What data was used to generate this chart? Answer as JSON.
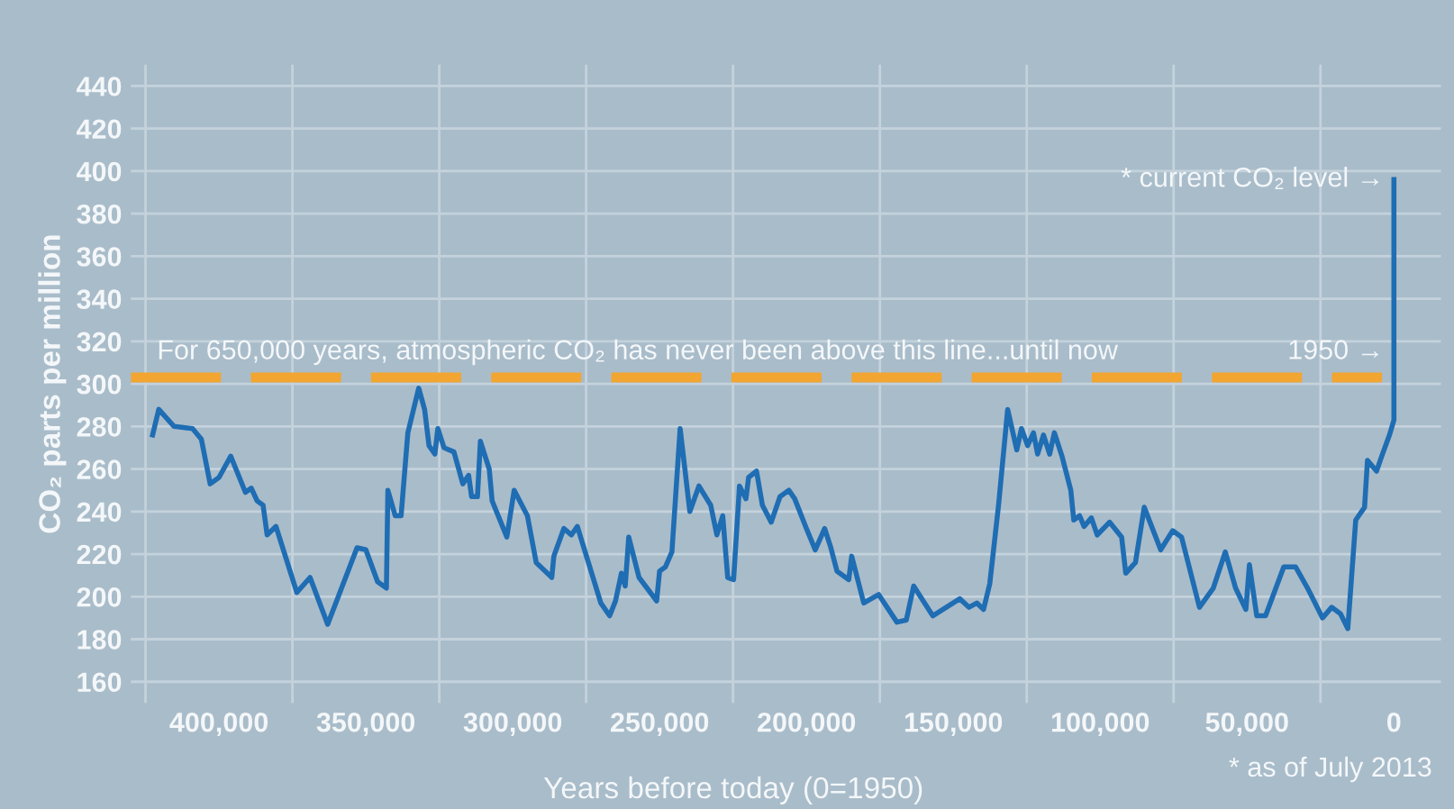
{
  "chart_data": {
    "type": "line",
    "xlabel": "Years before today (0=1950)",
    "ylabel": "CO₂ parts per million",
    "annotations": [
      {
        "text": "1950 →",
        "x": 0,
        "y": 315
      },
      {
        "text": "* current CO₂ level →",
        "x": 0,
        "y": 396
      },
      "* as of July 2013"
    ],
    "x": [
      422600,
      420500,
      415300,
      409000,
      406000,
      403000,
      400000,
      396000,
      391000,
      389000,
      387000,
      385000,
      383600,
      380600,
      373500,
      369000,
      363000,
      353000,
      350000,
      346000,
      343000,
      342500,
      340000,
      338000,
      335700,
      332000,
      330000,
      328500,
      326500,
      325500,
      323400,
      320000,
      317000,
      315000,
      314000,
      312000,
      311000,
      308000,
      307000,
      302000,
      299500,
      295000,
      292000,
      286700,
      286000,
      282600,
      280000,
      278000,
      270000,
      267000,
      265000,
      263000,
      261700,
      260500,
      257000,
      251000,
      250000,
      248000,
      245800,
      243000,
      239700,
      236600,
      232600,
      230500,
      228500,
      226800,
      224800,
      222800,
      220600,
      219700,
      217000,
      215000,
      212000,
      209000,
      206000,
      204000,
      200000,
      197000,
      193800,
      191700,
      189600,
      185600,
      184600,
      180500,
      175400,
      169200,
      166000,
      163500,
      157000,
      147800,
      144700,
      142000,
      139700,
      137600,
      134600,
      131500,
      128400,
      126800,
      124700,
      122700,
      121300,
      119300,
      117200,
      115600,
      113000,
      110000,
      109000,
      107000,
      105500,
      103000,
      101000,
      96800,
      92700,
      91300,
      88000,
      85000,
      79400,
      75300,
      72300,
      66200,
      61500,
      57400,
      53900,
      50400,
      49200,
      46700,
      43700,
      37500,
      33500,
      29400,
      24300,
      21200,
      18200,
      15700,
      13000,
      10000,
      9000,
      5900,
      3900,
      1500,
      0,
      0
    ],
    "series": [
      {
        "color": "#1f6db3",
        "line_style": "solid",
        "marker": "none",
        "values": [
          276,
          288,
          280,
          279,
          274,
          253,
          256,
          266,
          249,
          251,
          245,
          243,
          229,
          233,
          202,
          209,
          187,
          223,
          222,
          207,
          204,
          250,
          238,
          238,
          277,
          298,
          288,
          271,
          267,
          279,
          270,
          268,
          253,
          257,
          247,
          247,
          273,
          260,
          245,
          228,
          250,
          238,
          216,
          209,
          219,
          232,
          229,
          233,
          197,
          191,
          198,
          211,
          205,
          228,
          209,
          198,
          212,
          214,
          221,
          279,
          240,
          252,
          243,
          229,
          238,
          209,
          208,
          252,
          246,
          256,
          259,
          243,
          235,
          247,
          250,
          246,
          232,
          222,
          232,
          223,
          212,
          208,
          219,
          197,
          201,
          188,
          189,
          205,
          191,
          199,
          195,
          197,
          194,
          206,
          243,
          288,
          269,
          279,
          271,
          277,
          267,
          276,
          267,
          277,
          266,
          250,
          236,
          238,
          233,
          237,
          229,
          235,
          228,
          211,
          216,
          242,
          222,
          231,
          228,
          195,
          204,
          221,
          204,
          194,
          215,
          191,
          191,
          214,
          214,
          204,
          190,
          195,
          192,
          185,
          236,
          242,
          264,
          259,
          267,
          276,
          283,
          396
        ]
      }
    ],
    "xlim": [
      430000,
      -16000
    ],
    "ylim": [
      150,
      450
    ],
    "xticks": [
      {
        "value": 400000,
        "label": "400,000"
      },
      {
        "value": 350000,
        "label": "350,000"
      },
      {
        "value": 300000,
        "label": "300,000"
      },
      {
        "value": 250000,
        "label": "250,000"
      },
      {
        "value": 200000,
        "label": "200,000"
      },
      {
        "value": 150000,
        "label": "150,000"
      },
      {
        "value": 100000,
        "label": "100,000"
      },
      {
        "value": 50000,
        "label": "50,000"
      },
      0
    ],
    "yticks": [
      160,
      180,
      200,
      220,
      240,
      260,
      280,
      300,
      320,
      340,
      360,
      380,
      400,
      420,
      440
    ],
    "grid": "y",
    "ref_lines": [
      {
        "axis": "y",
        "value": 303,
        "label": "For 650,000 years, atmospheric CO₂ has never been above this line...until now",
        "color": "#f2a531",
        "line_style": "dashed"
      },
      {
        "axis": "x",
        "value": 425000,
        "color": "#c4d2dc"
      },
      {
        "axis": "x",
        "value": 375000,
        "color": "#c4d2dc"
      },
      {
        "axis": "x",
        "value": 325000,
        "color": "#c4d2dc"
      },
      {
        "axis": "x",
        "value": 275000,
        "color": "#c4d2dc"
      },
      {
        "axis": "x",
        "value": 225000,
        "color": "#c4d2dc"
      },
      {
        "axis": "x",
        "value": 175000,
        "color": "#c4d2dc"
      },
      {
        "axis": "x",
        "value": 125000,
        "color": "#c4d2dc"
      },
      {
        "axis": "x",
        "value": 75000,
        "color": "#c4d2dc"
      },
      {
        "axis": "x",
        "value": 25000,
        "color": "#c4d2dc"
      }
    ]
  }
}
